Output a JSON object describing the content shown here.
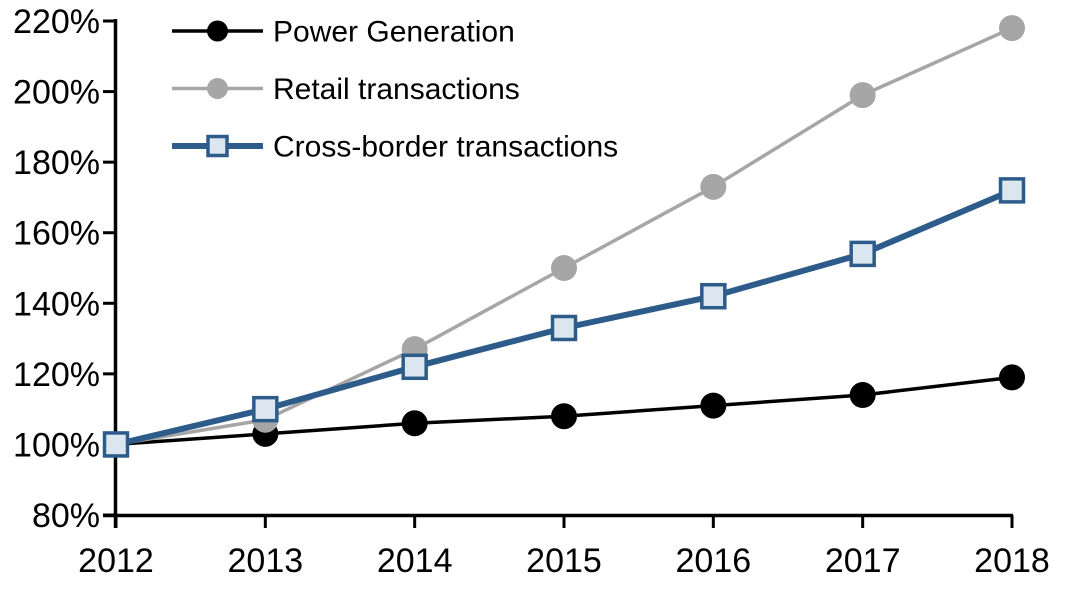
{
  "chart_data": {
    "type": "line",
    "title": "",
    "xlabel": "",
    "ylabel": "",
    "x_labels": [
      "2012",
      "2013",
      "2014",
      "2015",
      "2016",
      "2017",
      "2018"
    ],
    "y_axis": {
      "min": 80,
      "max": 220,
      "step": 20,
      "unit": "%"
    },
    "y_tick_labels": [
      "220%",
      "200%",
      "180%",
      "160%",
      "140%",
      "120%",
      "100%",
      "80%"
    ],
    "grid": false,
    "legend_position": "top-left-inside",
    "axis_color": "#000000",
    "background_color": "#ffffff",
    "series": [
      {
        "name": "Power Generation",
        "color": "#000000",
        "marker": "circle",
        "marker_fill": "#000000",
        "values": [
          100,
          103,
          106,
          108,
          111,
          114,
          119
        ]
      },
      {
        "name": "Retail transactions",
        "color": "#A6A6A6",
        "marker": "circle",
        "marker_fill": "#A6A6A6",
        "values": [
          100,
          107,
          127,
          150,
          173,
          199,
          218
        ]
      },
      {
        "name": "Cross-border transactions",
        "color": "#2E5C8A",
        "marker": "square",
        "marker_fill": "#DCE6F1",
        "values": [
          100,
          110,
          122,
          133,
          142,
          154,
          172
        ]
      }
    ]
  }
}
